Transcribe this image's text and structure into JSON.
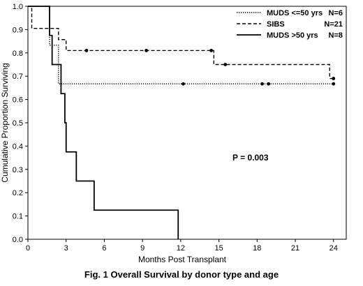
{
  "caption": "Fig. 1 Overall  Survival by donor type and age",
  "chart_data": {
    "type": "line",
    "subtype": "kaplan-meier step",
    "title": "",
    "xlabel": "Months Post Transplant",
    "ylabel": "Cumulative Proportion Surviving",
    "xlim": [
      0,
      25
    ],
    "ylim": [
      0,
      1.0
    ],
    "xticks": [
      0,
      3,
      6,
      9,
      12,
      15,
      18,
      21,
      24
    ],
    "yticks": [
      0.0,
      0.1,
      0.2,
      0.3,
      0.4,
      0.5,
      0.6,
      0.7,
      0.8,
      0.9,
      1.0
    ],
    "xtick_labels": [
      "0",
      "3",
      "6",
      "9",
      "12",
      "15",
      "18",
      "21",
      "24"
    ],
    "ytick_labels": [
      "0.0",
      "0.1",
      "0.2",
      "0.3",
      "0.4",
      "0.5",
      "0.6",
      "0.7",
      "0.8",
      "0.9",
      "1.0"
    ],
    "grid": false,
    "legend_position": "top-right",
    "annotation": "P = 0.003",
    "series": [
      {
        "name": "MUDS <=50 yrs",
        "n_label": "N=6",
        "style": "dotted",
        "steps": [
          [
            0,
            1.0
          ],
          [
            1.7,
            0.833
          ],
          [
            2.4,
            0.667
          ],
          [
            24,
            0.667
          ]
        ],
        "censored": [
          [
            12.2,
            0.667
          ],
          [
            18.4,
            0.667
          ],
          [
            18.9,
            0.667
          ],
          [
            24,
            0.667
          ]
        ]
      },
      {
        "name": "SIBS",
        "n_label": "N=21",
        "style": "dashed",
        "steps": [
          [
            0,
            1.0
          ],
          [
            0.3,
            0.905
          ],
          [
            2.4,
            0.857
          ],
          [
            3.0,
            0.81
          ],
          [
            14.6,
            0.75
          ],
          [
            23.7,
            0.69
          ],
          [
            24,
            0.69
          ]
        ],
        "censored": [
          [
            4.6,
            0.81
          ],
          [
            9.3,
            0.81
          ],
          [
            14.4,
            0.81
          ],
          [
            15.5,
            0.75
          ],
          [
            24,
            0.69
          ]
        ]
      },
      {
        "name": "MUDS >50 yrs",
        "n_label": "N=8",
        "style": "solid",
        "steps": [
          [
            0,
            1.0
          ],
          [
            1.7,
            0.875
          ],
          [
            1.9,
            0.75
          ],
          [
            2.6,
            0.625
          ],
          [
            2.9,
            0.5
          ],
          [
            3.0,
            0.375
          ],
          [
            3.8,
            0.25
          ],
          [
            5.2,
            0.125
          ],
          [
            11.8,
            0.0
          ]
        ],
        "censored": []
      }
    ]
  }
}
